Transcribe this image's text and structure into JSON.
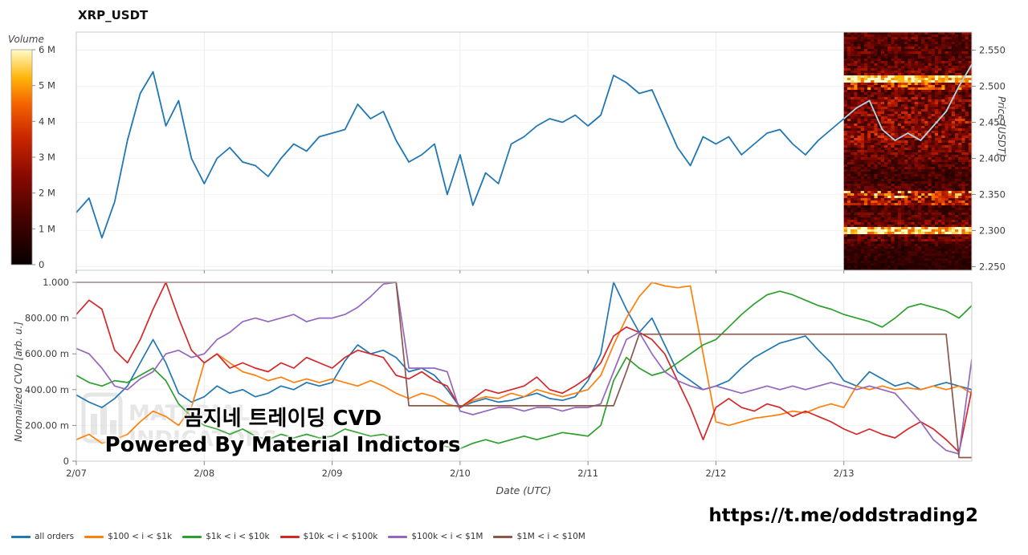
{
  "title": "XRP_USDT",
  "watermark": {
    "line1": "곰지네 트레이딩 CVD",
    "line2": "Powered By Material Indictors",
    "logo_line1": "MATERIAL",
    "logo_line2": "INDICATORS"
  },
  "footer": {
    "url": "https://t.me/oddstrading2"
  },
  "legend": {
    "items": [
      {
        "label": "all orders",
        "color": "#1f77b4"
      },
      {
        "label": "$100 < i < $1k",
        "color": "#ff7f0e"
      },
      {
        "label": "$1k < i < $10k",
        "color": "#2ca02c"
      },
      {
        "label": "$10k < i < $100k",
        "color": "#d62728"
      },
      {
        "label": "$100k < i < $1M",
        "color": "#9467bd"
      },
      {
        "label": "$1M < i < $10M",
        "color": "#8c564b"
      }
    ]
  },
  "chart_data": [
    {
      "type": "line",
      "name": "price-panel",
      "title": "XRP_USDT",
      "ylabel_right": "Price [USDT]",
      "y_range": [
        2.245,
        2.575
      ],
      "y_ticks": [
        {
          "v": 2.55,
          "label": "2.550"
        },
        {
          "v": 2.5,
          "label": "2.500"
        },
        {
          "v": 2.45,
          "label": "2.450"
        },
        {
          "v": 2.4,
          "label": "2.400"
        },
        {
          "v": 2.35,
          "label": "2.350"
        },
        {
          "v": 2.3,
          "label": "2.300"
        },
        {
          "v": 2.25,
          "label": "2.250"
        }
      ],
      "x_ticks": [
        "2/07",
        "2/08",
        "2/09",
        "2/10",
        "2/11",
        "2/12",
        "2/13"
      ],
      "x_range_days": [
        0,
        7
      ],
      "colorbar": {
        "label": "Volume",
        "ticks": [
          "6 M",
          "5 M",
          "4 M",
          "3 M",
          "2 M",
          "1 M",
          "0"
        ],
        "min": 0,
        "max": 6000000
      },
      "price": {
        "name": "XRP_USDT price",
        "color": "#1f77b4",
        "color_over_heatmap": "#b9cfe0",
        "x_step": 0.1,
        "values": [
          2.325,
          2.345,
          2.29,
          2.34,
          2.425,
          2.49,
          2.52,
          2.445,
          2.48,
          2.4,
          2.365,
          2.4,
          2.415,
          2.395,
          2.39,
          2.375,
          2.4,
          2.42,
          2.41,
          2.43,
          2.435,
          2.44,
          2.475,
          2.455,
          2.465,
          2.425,
          2.395,
          2.405,
          2.42,
          2.35,
          2.405,
          2.335,
          2.38,
          2.365,
          2.42,
          2.43,
          2.445,
          2.455,
          2.45,
          2.46,
          2.445,
          2.46,
          2.515,
          2.505,
          2.49,
          2.495,
          2.455,
          2.415,
          2.39,
          2.43,
          2.42,
          2.43,
          2.405,
          2.42,
          2.435,
          2.44,
          2.42,
          2.405,
          2.425,
          2.44,
          2.455,
          2.47,
          2.48,
          2.44,
          2.425,
          2.435,
          2.425,
          2.445,
          2.465,
          2.5,
          2.53
        ]
      },
      "heatmap": {
        "name": "volume-heatmap",
        "x_start": 6,
        "x_end": 7,
        "price_top": 2.57,
        "price_step": 0.01,
        "row_intensity": [
          0.3,
          0.25,
          0.3,
          0.25,
          0.3,
          0.35,
          0.95,
          0.55,
          0.3,
          0.4,
          0.35,
          0.38,
          0.42,
          0.38,
          0.42,
          0.38,
          0.32,
          0.3,
          0.26,
          0.22,
          0.2,
          0.25,
          0.62,
          0.48,
          0.22,
          0.26,
          0.32,
          0.95,
          0.3,
          0.2,
          0.16,
          0.15,
          0.12
        ]
      }
    },
    {
      "type": "line",
      "name": "cvd-panel",
      "ylabel": "Normalized CVD [arb. u.]",
      "xlabel": "Date (UTC)",
      "y_range": [
        0,
        1
      ],
      "y_ticks": [
        {
          "v": 1.0,
          "label": "1.000"
        },
        {
          "v": 0.8,
          "label": "800.00 m"
        },
        {
          "v": 0.6,
          "label": "600.00 m"
        },
        {
          "v": 0.4,
          "label": "400.00 m"
        },
        {
          "v": 0.2,
          "label": "200.00 m"
        },
        {
          "v": 0.0,
          "label": "0"
        }
      ],
      "x_ticks": [
        "2/07",
        "2/08",
        "2/09",
        "2/10",
        "2/11",
        "2/12",
        "2/13"
      ],
      "x_step": 0.1,
      "series": [
        {
          "name": "all orders",
          "color": "#1f77b4",
          "values": [
            0.37,
            0.33,
            0.3,
            0.35,
            0.42,
            0.55,
            0.68,
            0.55,
            0.38,
            0.33,
            0.36,
            0.42,
            0.38,
            0.4,
            0.36,
            0.38,
            0.42,
            0.4,
            0.44,
            0.42,
            0.44,
            0.56,
            0.65,
            0.6,
            0.62,
            0.58,
            0.5,
            0.52,
            0.48,
            0.4,
            0.3,
            0.33,
            0.35,
            0.33,
            0.34,
            0.36,
            0.38,
            0.35,
            0.34,
            0.36,
            0.45,
            0.6,
            1.0,
            0.85,
            0.72,
            0.8,
            0.65,
            0.5,
            0.45,
            0.4,
            0.42,
            0.45,
            0.52,
            0.58,
            0.62,
            0.66,
            0.68,
            0.7,
            0.62,
            0.55,
            0.45,
            0.42,
            0.5,
            0.46,
            0.42,
            0.44,
            0.4,
            0.42,
            0.44,
            0.42,
            0.4
          ]
        },
        {
          "name": "$100 < i < $1k",
          "color": "#ff7f0e",
          "values": [
            0.12,
            0.15,
            0.1,
            0.12,
            0.15,
            0.22,
            0.28,
            0.25,
            0.2,
            0.3,
            0.55,
            0.6,
            0.55,
            0.5,
            0.48,
            0.45,
            0.47,
            0.44,
            0.46,
            0.44,
            0.46,
            0.44,
            0.42,
            0.45,
            0.42,
            0.38,
            0.35,
            0.38,
            0.36,
            0.32,
            0.3,
            0.34,
            0.36,
            0.35,
            0.38,
            0.36,
            0.4,
            0.38,
            0.36,
            0.38,
            0.4,
            0.48,
            0.65,
            0.8,
            0.92,
            1.0,
            0.98,
            0.97,
            0.98,
            0.6,
            0.22,
            0.2,
            0.22,
            0.24,
            0.25,
            0.26,
            0.28,
            0.27,
            0.3,
            0.32,
            0.3,
            0.42,
            0.4,
            0.42,
            0.4,
            0.41,
            0.4,
            0.42,
            0.4,
            0.42,
            0.38
          ]
        },
        {
          "name": "$1k < i < $10k",
          "color": "#2ca02c",
          "values": [
            0.48,
            0.44,
            0.42,
            0.45,
            0.44,
            0.48,
            0.52,
            0.45,
            0.32,
            0.25,
            0.2,
            0.18,
            0.15,
            0.18,
            0.14,
            0.12,
            0.15,
            0.13,
            0.15,
            0.13,
            0.14,
            0.18,
            0.16,
            0.14,
            0.15,
            0.12,
            0.1,
            0.12,
            0.1,
            0.08,
            0.07,
            0.1,
            0.12,
            0.1,
            0.12,
            0.14,
            0.12,
            0.14,
            0.16,
            0.15,
            0.14,
            0.2,
            0.45,
            0.58,
            0.52,
            0.48,
            0.5,
            0.55,
            0.6,
            0.65,
            0.68,
            0.75,
            0.82,
            0.88,
            0.93,
            0.95,
            0.93,
            0.9,
            0.87,
            0.85,
            0.82,
            0.8,
            0.78,
            0.75,
            0.8,
            0.86,
            0.88,
            0.86,
            0.84,
            0.8,
            0.87
          ]
        },
        {
          "name": "$10k < i < $100k",
          "color": "#d62728",
          "values": [
            0.82,
            0.9,
            0.85,
            0.62,
            0.55,
            0.68,
            0.85,
            1.0,
            0.8,
            0.62,
            0.55,
            0.6,
            0.52,
            0.55,
            0.52,
            0.5,
            0.55,
            0.52,
            0.58,
            0.55,
            0.52,
            0.58,
            0.62,
            0.6,
            0.58,
            0.48,
            0.46,
            0.5,
            0.45,
            0.42,
            0.3,
            0.35,
            0.4,
            0.38,
            0.4,
            0.42,
            0.47,
            0.4,
            0.38,
            0.42,
            0.47,
            0.55,
            0.7,
            0.75,
            0.72,
            0.68,
            0.6,
            0.45,
            0.3,
            0.12,
            0.3,
            0.35,
            0.3,
            0.28,
            0.32,
            0.3,
            0.25,
            0.28,
            0.25,
            0.22,
            0.18,
            0.15,
            0.18,
            0.15,
            0.13,
            0.18,
            0.22,
            0.18,
            0.12,
            0.05,
            0.4
          ]
        },
        {
          "name": "$100k < i < $1M",
          "color": "#9467bd",
          "values": [
            0.63,
            0.6,
            0.52,
            0.42,
            0.4,
            0.46,
            0.5,
            0.6,
            0.62,
            0.58,
            0.6,
            0.68,
            0.72,
            0.78,
            0.8,
            0.78,
            0.8,
            0.82,
            0.78,
            0.8,
            0.8,
            0.82,
            0.86,
            0.92,
            0.99,
            1.0,
            0.52,
            0.52,
            0.52,
            0.5,
            0.28,
            0.26,
            0.28,
            0.3,
            0.3,
            0.28,
            0.3,
            0.3,
            0.28,
            0.3,
            0.3,
            0.32,
            0.5,
            0.68,
            0.72,
            0.6,
            0.5,
            0.45,
            0.42,
            0.4,
            0.42,
            0.4,
            0.38,
            0.4,
            0.42,
            0.4,
            0.42,
            0.4,
            0.42,
            0.44,
            0.42,
            0.4,
            0.42,
            0.4,
            0.38,
            0.3,
            0.22,
            0.12,
            0.06,
            0.04,
            0.57
          ]
        },
        {
          "name": "$1M < i < $10M",
          "color": "#8c564b",
          "values": [
            1,
            1,
            1,
            1,
            1,
            1,
            1,
            1,
            1,
            1,
            1,
            1,
            1,
            1,
            1,
            1,
            1,
            1,
            1,
            1,
            1,
            1,
            1,
            1,
            1,
            1,
            0.31,
            0.31,
            0.31,
            0.31,
            0.31,
            0.31,
            0.31,
            0.31,
            0.31,
            0.31,
            0.31,
            0.31,
            0.31,
            0.31,
            0.31,
            0.31,
            0.31,
            0.5,
            0.71,
            0.71,
            0.71,
            0.71,
            0.71,
            0.71,
            0.71,
            0.71,
            0.71,
            0.71,
            0.71,
            0.71,
            0.71,
            0.71,
            0.71,
            0.71,
            0.71,
            0.71,
            0.71,
            0.71,
            0.71,
            0.71,
            0.71,
            0.71,
            0.71,
            0.02,
            0.02
          ]
        }
      ]
    }
  ]
}
